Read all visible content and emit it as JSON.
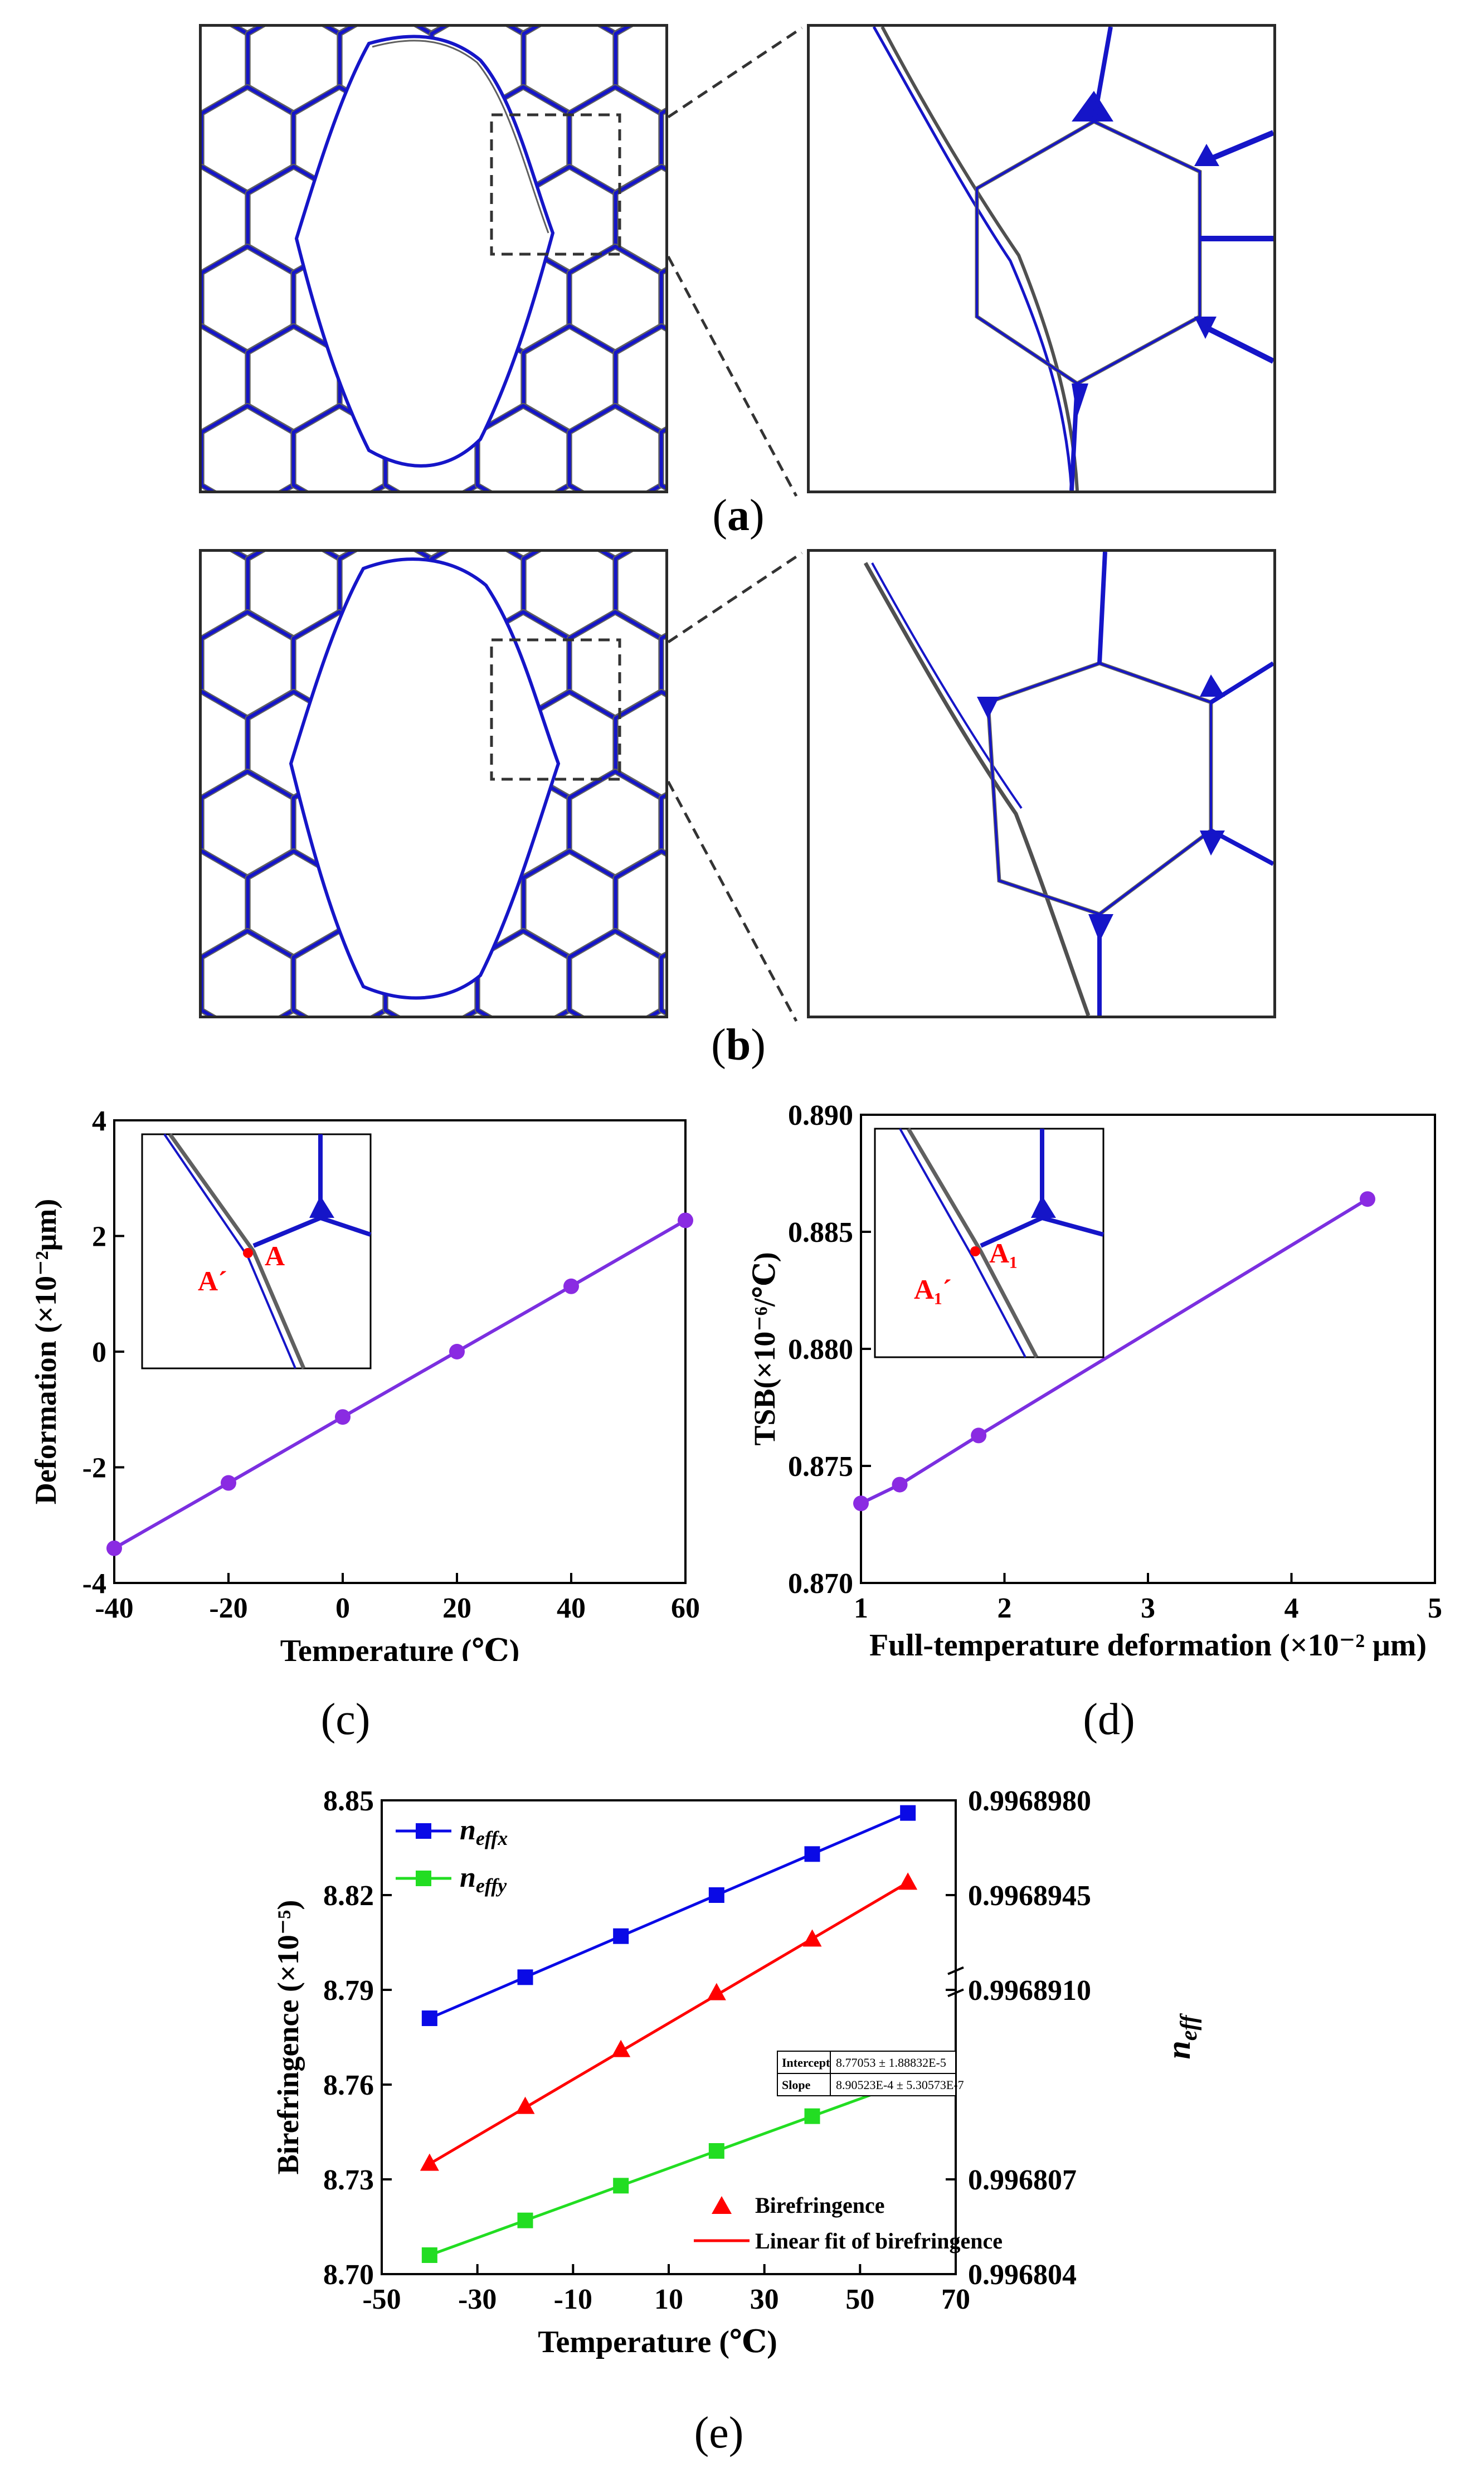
{
  "captions": {
    "a": "a",
    "b": "b",
    "c": "(c)",
    "d": "(d)",
    "e": "(e)"
  },
  "colors": {
    "line_purple": "#7b2fe0",
    "point_purple": "#8a2be2",
    "blue": "#0a0ae6",
    "red": "#ff0000",
    "green": "#22dd22",
    "structure_blue": "#1515c8",
    "structure_gray": "#606060"
  },
  "chart_data": [
    {
      "id": "c",
      "type": "line",
      "xlabel": "Temperature (℃)",
      "ylabel": "Deformation (×10⁻²μm)",
      "xlim": [
        -40,
        60
      ],
      "ylim": [
        -4,
        4
      ],
      "xticks": [
        -40,
        -20,
        0,
        20,
        40,
        60
      ],
      "yticks": [
        -4,
        -2,
        0,
        2,
        4
      ],
      "x": [
        -40,
        -20,
        0,
        20,
        40,
        60
      ],
      "y": [
        -3.4,
        -2.27,
        -1.13,
        0.0,
        1.13,
        2.27
      ],
      "inset_labels": [
        "A´",
        "A"
      ]
    },
    {
      "id": "d",
      "type": "line",
      "xlabel": "Full-temperature deformation (×10⁻² μm)",
      "ylabel": "TSB(×10⁻⁶/℃)",
      "xlim": [
        1,
        5
      ],
      "ylim": [
        0.87,
        0.89
      ],
      "xticks": [
        1,
        2,
        3,
        4,
        5
      ],
      "yticks": [
        "0.870",
        "0.875",
        "0.880",
        "0.885",
        "0.890"
      ],
      "x": [
        1.0,
        1.27,
        1.82,
        4.53
      ],
      "y": [
        0.8734,
        0.8742,
        0.8763,
        0.8864
      ],
      "inset_labels": [
        "A₁´",
        "A₁"
      ]
    },
    {
      "id": "e",
      "type": "line",
      "xlabel": "Temperature (℃)",
      "ylabel": "Birefringence (×10⁻⁵)",
      "ylabel_right": "n_eff",
      "xlim": [
        -50,
        70
      ],
      "ylim": [
        8.7,
        8.85
      ],
      "xticks": [
        -50,
        -30,
        -10,
        10,
        30,
        50,
        70
      ],
      "yticks": [
        "8.70",
        "8.73",
        "8.76",
        "8.79",
        "8.82",
        "8.85"
      ],
      "right_ticks": [
        "0.996804",
        "0.996807",
        "0.9968910",
        "0.9968945",
        "0.9968980"
      ],
      "series": [
        {
          "name": "n_effx",
          "x": [
            -40,
            -20,
            0,
            20,
            40,
            60
          ],
          "y": [
            8.781,
            8.794,
            8.807,
            8.82,
            8.833,
            8.846
          ]
        },
        {
          "name": "n_effy",
          "x": [
            -40,
            -20,
            0,
            20,
            40,
            60
          ],
          "y": [
            8.706,
            8.717,
            8.728,
            8.739,
            8.75,
            8.761
          ]
        },
        {
          "name": "Birefringence",
          "x": [
            -40,
            -20,
            0,
            20,
            40,
            60
          ],
          "y": [
            8.735,
            8.753,
            8.771,
            8.789,
            8.806,
            8.824
          ]
        },
        {
          "name": "Linear fit of birefringence",
          "x": [
            -40,
            60
          ],
          "y": [
            8.7349,
            8.824
          ]
        }
      ],
      "legend": {
        "neffx": "n",
        "neffx_sub": "effx",
        "neffy": "n",
        "neffy_sub": "effy",
        "bire": "Birefringence",
        "fit": "Linear fit of birefringence"
      },
      "fit_table": {
        "intercept_label": "Intercept",
        "intercept_value": "8.77053 ± 1.88832E-5",
        "slope_label": "Slope",
        "slope_value": "8.90523E-4 ± 5.30573E-7"
      },
      "right_label_main": "n",
      "right_label_sub": "eff"
    }
  ]
}
